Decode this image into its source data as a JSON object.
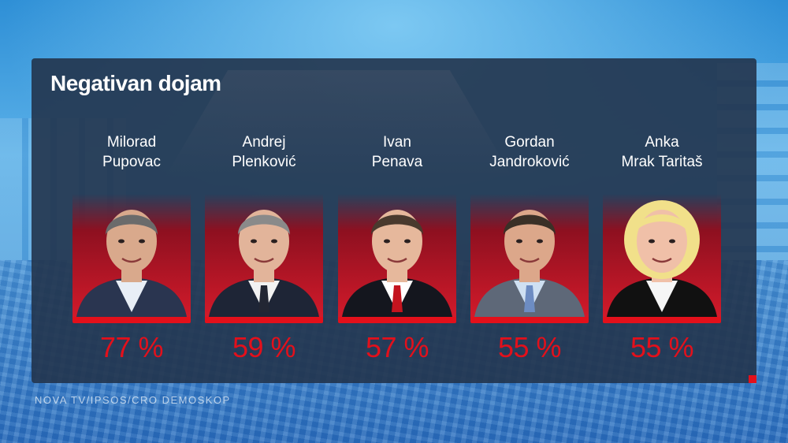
{
  "title": "Negativan dojam",
  "source": "NOVA TV/IPSOS/CRO DEMOSKOP",
  "colors": {
    "accent": "#e3101b",
    "panel": "#22344c",
    "text": "#ffffff"
  },
  "chart_data": {
    "type": "bar",
    "title": "Negativan dojam",
    "categories": [
      [
        "Milorad",
        "Pupovac"
      ],
      [
        "Andrej",
        "Plenković"
      ],
      [
        "Ivan",
        "Penava"
      ],
      [
        "Gordan",
        "Jandroković"
      ],
      [
        "Anka",
        "Mrak Taritaš"
      ]
    ],
    "values": [
      77,
      59,
      57,
      55,
      55
    ],
    "unit": "%",
    "value_labels": [
      "77 %",
      "59 %",
      "57 %",
      "55 %",
      "55 %"
    ]
  },
  "people": [
    {
      "first": "Milorad",
      "last": "Pupovac",
      "label": "77 %",
      "hair": "#6b6b6b",
      "skin": "#d9a98c",
      "suit": "#2a3550",
      "shirt": "#e8eef6",
      "tie": ""
    },
    {
      "first": "Andrej",
      "last": "Plenković",
      "label": "59 %",
      "hair": "#8a8a8a",
      "skin": "#e2b49a",
      "suit": "#1e2536",
      "shirt": "#f2f2f2",
      "tie": "#222633"
    },
    {
      "first": "Ivan",
      "last": "Penava",
      "label": "57 %",
      "hair": "#4a3a2e",
      "skin": "#e6b89c",
      "suit": "#14161e",
      "shirt": "#ffffff",
      "tie": "#c4141f"
    },
    {
      "first": "Gordan",
      "last": "Jandroković",
      "label": "55 %",
      "hair": "#3a3027",
      "skin": "#dca78a",
      "suit": "#5e6878",
      "shirt": "#cfe0f2",
      "tie": "#6d8cc2"
    },
    {
      "first": "Anka",
      "last": "Mrak Taritaš",
      "label": "55 %",
      "hair": "#f1e08a",
      "skin": "#f0c0a8",
      "suit": "#111111",
      "shirt": "#f6f6f6",
      "tie": ""
    }
  ]
}
